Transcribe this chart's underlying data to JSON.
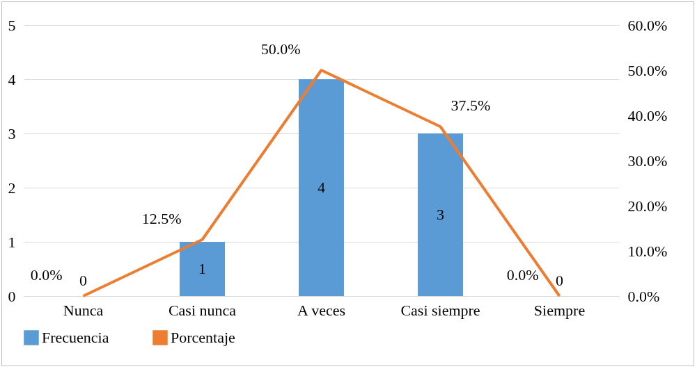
{
  "chart_data": {
    "type": "bar",
    "categories": [
      "Nunca",
      "Casi nunca",
      "A veces",
      "Casi siempre",
      "Siempre"
    ],
    "series": [
      {
        "name": "Frecuencia",
        "color": "#5b9bd5",
        "values": [
          0,
          1,
          4,
          3,
          0
        ],
        "value_labels": [
          "0",
          "1",
          "4",
          "3",
          "0"
        ]
      },
      {
        "name": "Porcentaje",
        "type": "line",
        "axis": "y2",
        "color": "#ed7d31",
        "values": [
          0,
          12.5,
          50,
          37.5,
          0
        ],
        "value_labels": [
          "0.0%",
          "12.5%",
          "50.0%",
          "37.5%",
          "0.0%"
        ]
      }
    ],
    "ylim": [
      0,
      5
    ],
    "yticks": [
      0,
      1,
      2,
      3,
      4,
      5
    ],
    "y2lim": [
      0,
      60
    ],
    "y2ticks": [
      {
        "value": 0,
        "label": "0.0%"
      },
      {
        "value": 10,
        "label": "10.0%"
      },
      {
        "value": 20,
        "label": "20.0%"
      },
      {
        "value": 30,
        "label": "30.0%"
      },
      {
        "value": 40,
        "label": "40.0%"
      },
      {
        "value": 50,
        "label": "50.0%"
      },
      {
        "value": 60,
        "label": "60.0%"
      }
    ],
    "grid": "y",
    "legend": "bottom",
    "marker": "none",
    "line_style": "solid"
  }
}
